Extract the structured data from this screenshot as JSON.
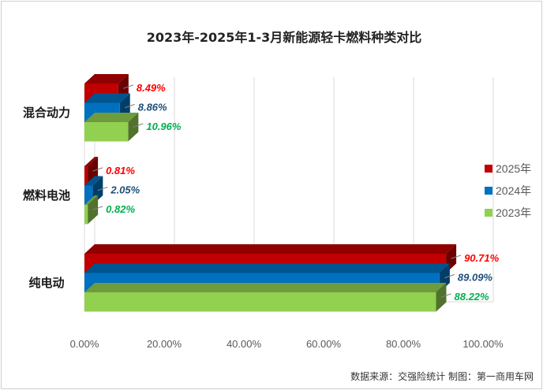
{
  "chart_data": {
    "type": "bar",
    "orientation": "horizontal",
    "title": "2023年-2025年1-3月新能源轻卡燃料种类对比",
    "categories": [
      "混合动力",
      "燃料电池",
      "纯电动"
    ],
    "series": [
      {
        "name": "2025年",
        "color": "#c00000",
        "values": [
          8.49,
          0.81,
          90.71
        ],
        "labels": [
          "8.49%",
          "0.81%",
          "90.71%"
        ],
        "label_color": "#ff0000"
      },
      {
        "name": "2024年",
        "color": "#0070c0",
        "values": [
          8.86,
          2.05,
          89.09
        ],
        "labels": [
          "8.86%",
          "2.05%",
          "89.09%"
        ],
        "label_color": "#1f4e79"
      },
      {
        "name": "2023年",
        "color": "#92d050",
        "values": [
          10.96,
          0.82,
          88.22
        ],
        "labels": [
          "10.96%",
          "0.82%",
          "88.22%"
        ],
        "label_color": "#00b050"
      }
    ],
    "xlim": [
      0,
      100
    ],
    "x_ticks": [
      0,
      20,
      40,
      60,
      80,
      100
    ],
    "x_tick_labels": [
      "0.00%",
      "20.00%",
      "40.00%",
      "60.00%",
      "80.00%",
      "100.00%"
    ],
    "grid": true,
    "legend_position": "right",
    "source": "数据来源：交强险统计 制图：第一商用车网"
  }
}
